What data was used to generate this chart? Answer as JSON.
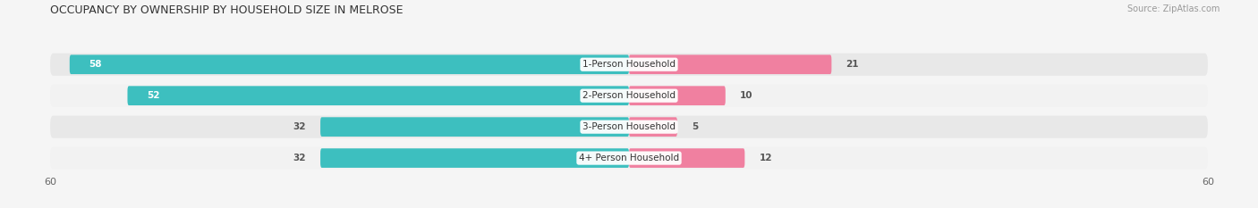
{
  "title": "OCCUPANCY BY OWNERSHIP BY HOUSEHOLD SIZE IN MELROSE",
  "source": "Source: ZipAtlas.com",
  "categories": [
    "1-Person Household",
    "2-Person Household",
    "3-Person Household",
    "4+ Person Household"
  ],
  "owner_values": [
    58,
    52,
    32,
    32
  ],
  "renter_values": [
    21,
    10,
    5,
    12
  ],
  "owner_color": "#3DBFBF",
  "renter_color": "#F080A0",
  "axis_max": 60,
  "title_fontsize": 9,
  "source_fontsize": 7,
  "label_fontsize": 7.5,
  "value_fontsize": 7.5,
  "axis_label_fontsize": 8,
  "row_colors": [
    "#e8e8e8",
    "#f2f2f2",
    "#e8e8e8",
    "#f2f2f2"
  ],
  "bg_color": "#f5f5f5"
}
